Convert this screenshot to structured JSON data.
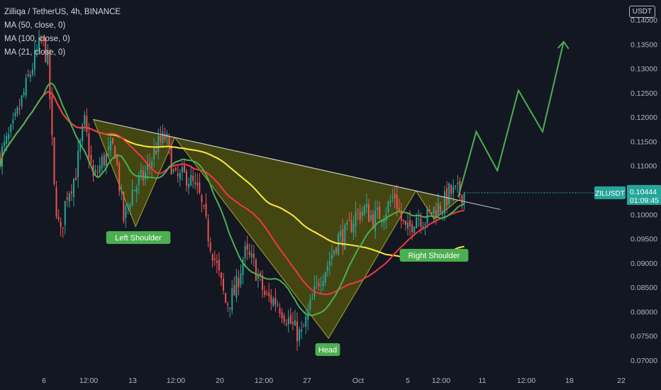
{
  "legend": {
    "title": "Zilliqa / TetherUS, 4h, BINANCE",
    "ma50": "MA (50, close, 0)",
    "ma100": "MA (100, close, 0)",
    "ma21": "MA (21, close, 0)"
  },
  "price_axis": {
    "currency": "USDT",
    "ticks": [
      "0.14000",
      "0.13500",
      "0.13000",
      "0.12500",
      "0.12000",
      "0.11500",
      "0.11000",
      "0.10500",
      "0.10000",
      "0.09500",
      "0.09000",
      "0.08500",
      "0.08000",
      "0.07500",
      "0.07000"
    ]
  },
  "current_price": {
    "symbol": "ZILUSDT",
    "price": "0.10444",
    "countdown": "01:09:45",
    "value": 0.10444
  },
  "time_axis": [
    "6",
    "12:00",
    "13",
    "12:00",
    "20",
    "12:00",
    "27",
    "Oct",
    "5",
    "12:00",
    "11",
    "12:00",
    "18",
    "22"
  ],
  "annotations": {
    "left_shoulder": "Left Shoulder",
    "head": "Head",
    "right_shoulder": "Right Shoulder"
  },
  "colors": {
    "background": "#131722",
    "up": "#26a69a",
    "down": "#ef5350",
    "ma21": "#4caf50",
    "ma50": "#f23645",
    "ma100": "#ffeb3b",
    "neckline": "#d1d4dc",
    "pattern_fill": "#808000",
    "label_green": "#4caf50",
    "projection": "#4caf50",
    "price_tag": "#26a69a"
  },
  "chart_data": {
    "type": "candlestick",
    "timeframe": "4h",
    "ylim": [
      0.07,
      0.14
    ],
    "grid": false,
    "price_path": [
      {
        "t": 0,
        "p": 0.112
      },
      {
        "t": 0.02,
        "p": 0.117
      },
      {
        "t": 0.04,
        "p": 0.125
      },
      {
        "t": 0.06,
        "p": 0.133
      },
      {
        "t": 0.07,
        "p": 0.136
      },
      {
        "t": 0.08,
        "p": 0.131
      },
      {
        "t": 0.09,
        "p": 0.105
      },
      {
        "t": 0.1,
        "p": 0.095
      },
      {
        "t": 0.11,
        "p": 0.104
      },
      {
        "t": 0.125,
        "p": 0.108
      },
      {
        "t": 0.14,
        "p": 0.119
      },
      {
        "t": 0.155,
        "p": 0.107
      },
      {
        "t": 0.17,
        "p": 0.111
      },
      {
        "t": 0.19,
        "p": 0.114
      },
      {
        "t": 0.205,
        "p": 0.099
      },
      {
        "t": 0.22,
        "p": 0.105
      },
      {
        "t": 0.24,
        "p": 0.108
      },
      {
        "t": 0.26,
        "p": 0.114
      },
      {
        "t": 0.275,
        "p": 0.116
      },
      {
        "t": 0.29,
        "p": 0.107
      },
      {
        "t": 0.31,
        "p": 0.108
      },
      {
        "t": 0.33,
        "p": 0.104
      },
      {
        "t": 0.345,
        "p": 0.096
      },
      {
        "t": 0.36,
        "p": 0.089
      },
      {
        "t": 0.375,
        "p": 0.0815
      },
      {
        "t": 0.39,
        "p": 0.084
      },
      {
        "t": 0.405,
        "p": 0.092
      },
      {
        "t": 0.42,
        "p": 0.09
      },
      {
        "t": 0.44,
        "p": 0.083
      },
      {
        "t": 0.46,
        "p": 0.082
      },
      {
        "t": 0.475,
        "p": 0.079
      },
      {
        "t": 0.49,
        "p": 0.076
      },
      {
        "t": 0.5,
        "p": 0.075
      },
      {
        "t": 0.515,
        "p": 0.081
      },
      {
        "t": 0.53,
        "p": 0.087
      },
      {
        "t": 0.545,
        "p": 0.09
      },
      {
        "t": 0.56,
        "p": 0.095
      },
      {
        "t": 0.575,
        "p": 0.096
      },
      {
        "t": 0.59,
        "p": 0.1
      },
      {
        "t": 0.605,
        "p": 0.101
      },
      {
        "t": 0.62,
        "p": 0.099
      },
      {
        "t": 0.64,
        "p": 0.101
      },
      {
        "t": 0.655,
        "p": 0.104
      },
      {
        "t": 0.665,
        "p": 0.099
      },
      {
        "t": 0.675,
        "p": 0.096
      },
      {
        "t": 0.69,
        "p": 0.1
      },
      {
        "t": 0.705,
        "p": 0.099
      },
      {
        "t": 0.72,
        "p": 0.101
      },
      {
        "t": 0.735,
        "p": 0.102
      },
      {
        "t": 0.745,
        "p": 0.1044
      }
    ]
  }
}
